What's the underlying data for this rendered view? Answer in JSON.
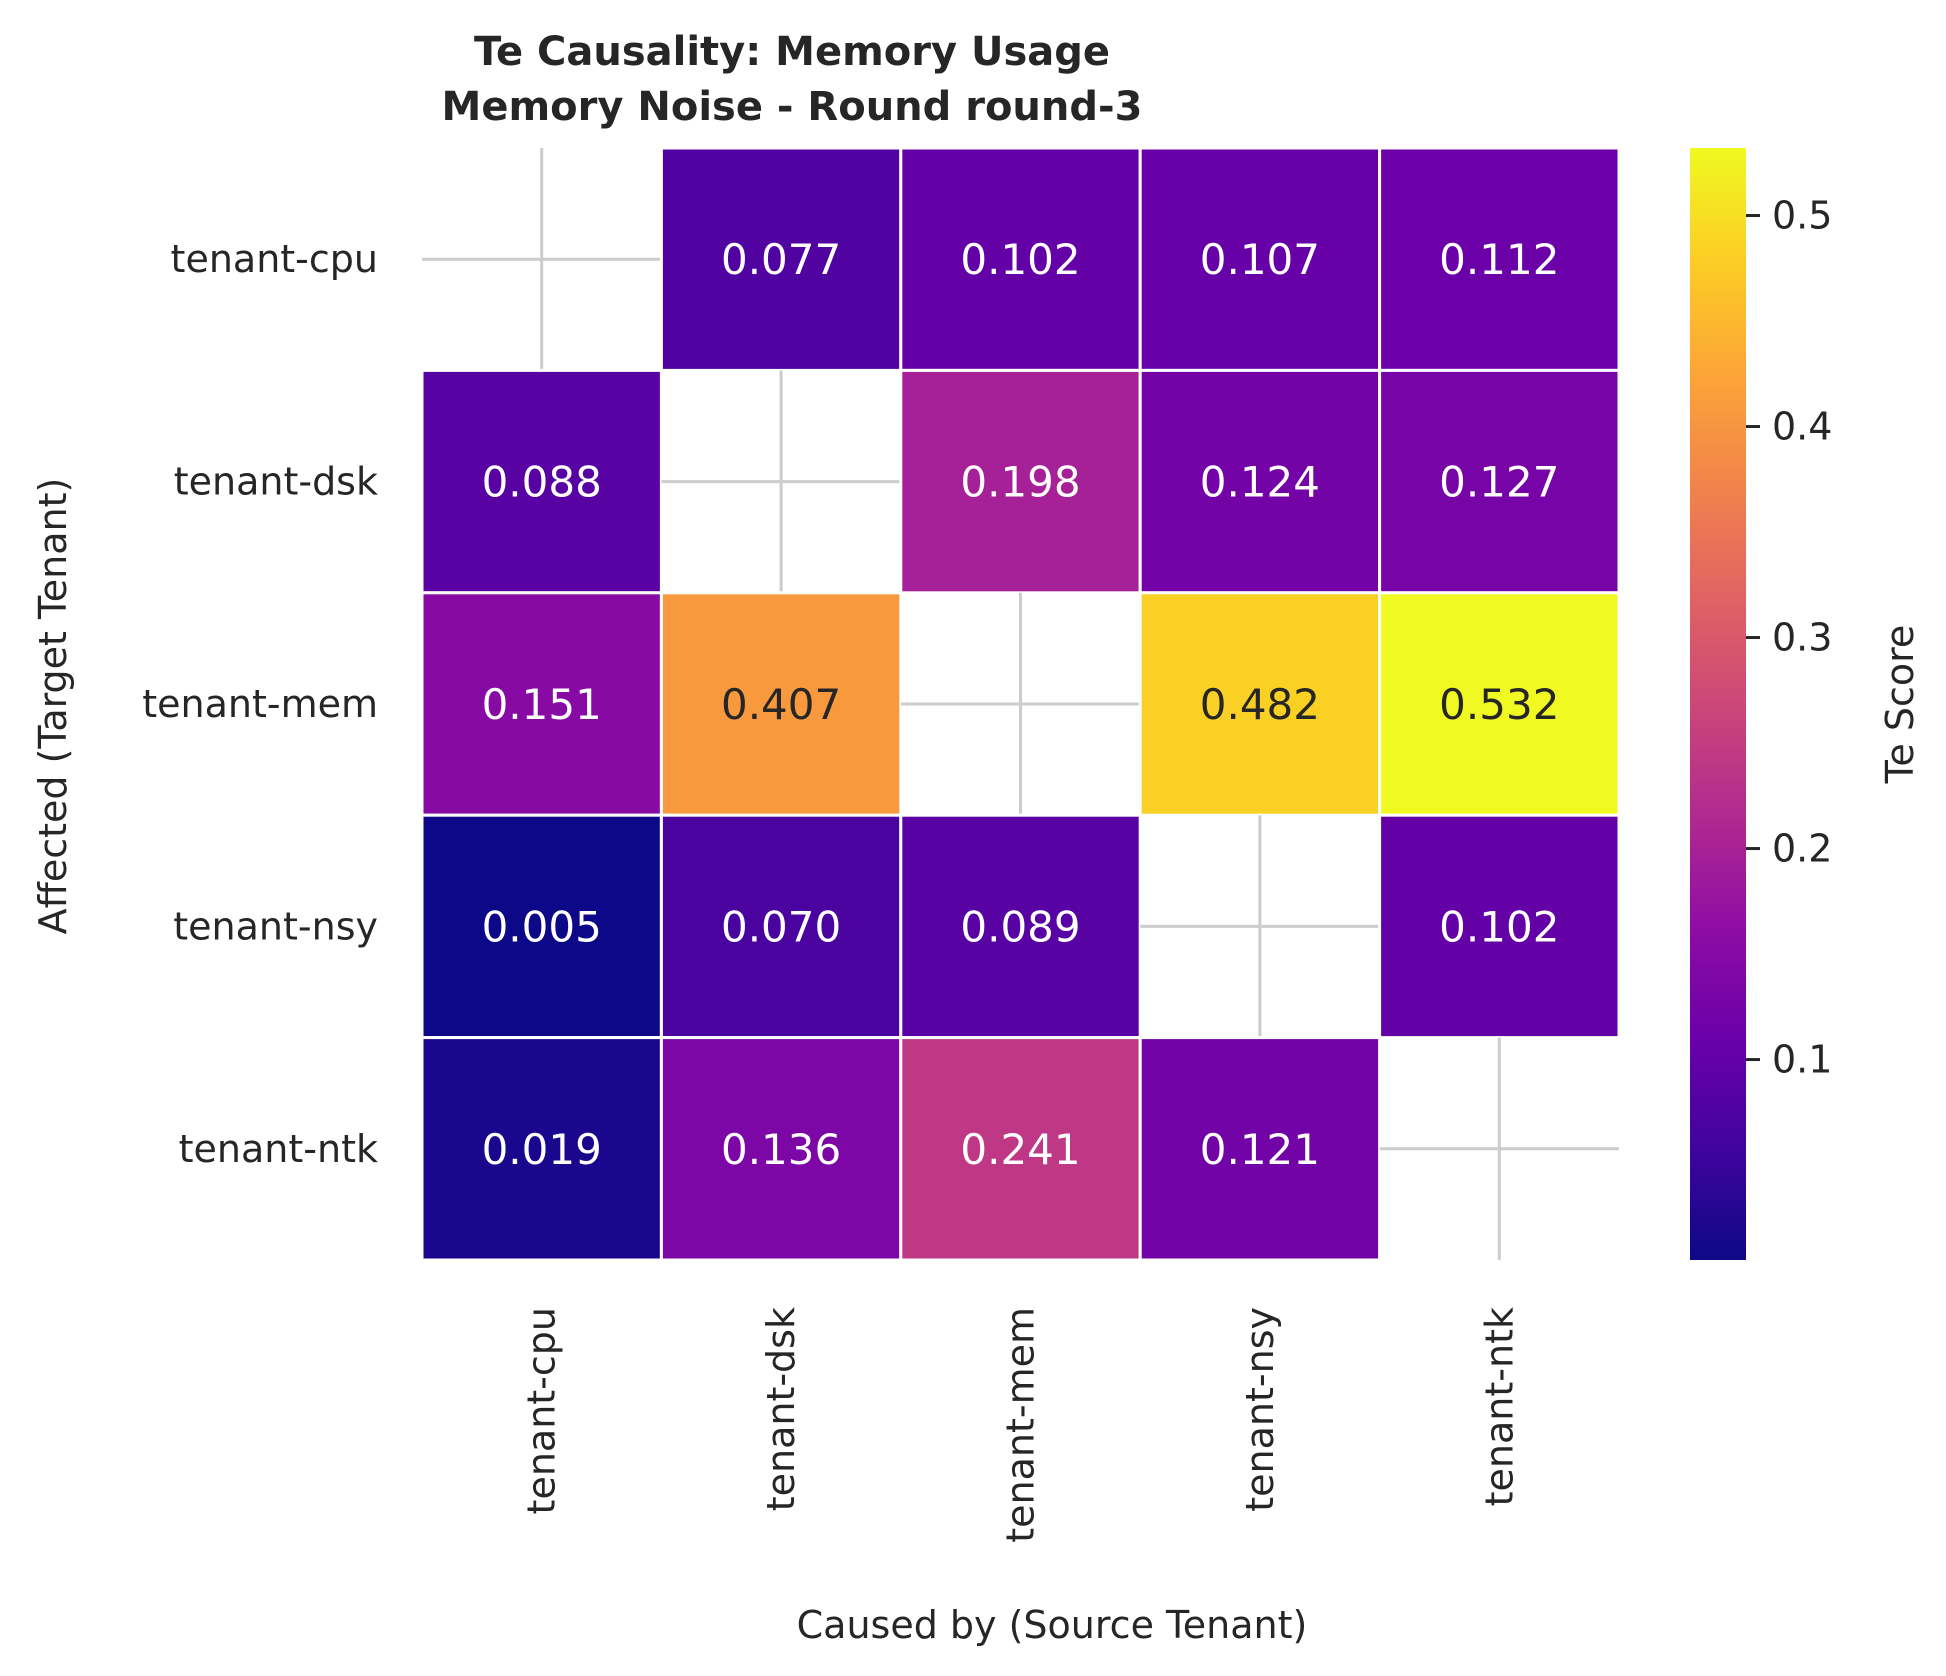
{
  "chart_data": {
    "type": "heatmap",
    "title": "Te Causality: Memory Usage",
    "subtitle": "Memory Noise - Round round-3",
    "xlabel": "Caused by (Source Tenant)",
    "ylabel": "Affected (Target Tenant)",
    "x_categories": [
      "tenant-cpu",
      "tenant-dsk",
      "tenant-mem",
      "tenant-nsy",
      "tenant-ntk"
    ],
    "y_categories": [
      "tenant-cpu",
      "tenant-dsk",
      "tenant-mem",
      "tenant-nsy",
      "tenant-ntk"
    ],
    "values": [
      [
        null,
        0.077,
        0.102,
        0.107,
        0.112
      ],
      [
        0.088,
        null,
        0.198,
        0.124,
        0.127
      ],
      [
        0.151,
        0.407,
        null,
        0.482,
        0.532
      ],
      [
        0.005,
        0.07,
        0.089,
        null,
        0.102
      ],
      [
        0.019,
        0.136,
        0.241,
        0.121,
        null
      ]
    ],
    "value_labels": [
      [
        "",
        "0.077",
        "0.102",
        "0.107",
        "0.112"
      ],
      [
        "0.088",
        "",
        "0.198",
        "0.124",
        "0.127"
      ],
      [
        "0.151",
        "0.407",
        "",
        "0.482",
        "0.532"
      ],
      [
        "0.005",
        "0.070",
        "0.089",
        "",
        "0.102"
      ],
      [
        "0.019",
        "0.136",
        "0.241",
        "0.121",
        ""
      ]
    ],
    "colorbar": {
      "label": "Te Score",
      "colormap": "plasma",
      "vmin": 0.005,
      "vmax": 0.532,
      "ticks": [
        0.1,
        0.2,
        0.3,
        0.4,
        0.5
      ],
      "tick_labels": [
        "0.1",
        "0.2",
        "0.3",
        "0.4",
        "0.5"
      ]
    },
    "grid": true,
    "diagonal_masked": true
  }
}
